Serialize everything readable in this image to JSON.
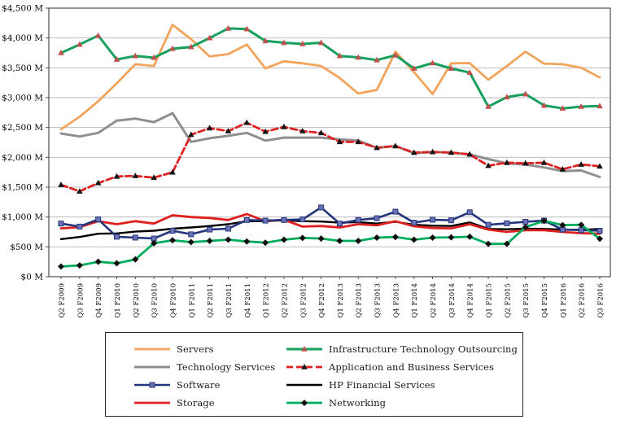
{
  "chart_data": {
    "type": "line",
    "title": "",
    "xlabel": "",
    "ylabel": "",
    "ylim": [
      0,
      4500
    ],
    "y_step": 500,
    "grid": true,
    "legend_position": "bottom",
    "y_tick_labels": [
      "$0 M",
      "$500 M",
      "$1,000 M",
      "$1,500 M",
      "$2,000 M",
      "$2,500 M",
      "$3,000 M",
      "$3,500 M",
      "$4,000 M",
      "$4,500 M"
    ],
    "categories": [
      "Q2 F2009",
      "Q3 F2009",
      "Q4 F2009",
      "Q1 F2010",
      "Q2 F2010",
      "Q3 F2010",
      "Q4 F2010",
      "Q1 F2011",
      "Q2 F2011",
      "Q3 F2011",
      "Q4 F2011",
      "Q1 F2012",
      "Q2 F2012",
      "Q3 F2012",
      "Q4 F2012",
      "Q1 F2013",
      "Q2 F2013",
      "Q3 F2013",
      "Q4 F2013",
      "Q1 F2014",
      "Q2 F2014",
      "Q3 F2014",
      "Q4 F2014",
      "Q1 F2015",
      "Q2 F2015",
      "Q3 F2015",
      "Q4 F2015",
      "Q1 F2016",
      "Q2 F2016",
      "Q3 F2016"
    ],
    "series": [
      {
        "name": "Technology Services",
        "color": "#8f8f8f",
        "dash": "none",
        "marker": "none",
        "marker_color": "#8f8f8f",
        "width": 3,
        "values": [
          2400,
          2350,
          2410,
          2615,
          2650,
          2590,
          2740,
          2260,
          2320,
          2360,
          2410,
          2280,
          2330,
          2330,
          2330,
          2300,
          2280,
          2160,
          2190,
          2070,
          2090,
          2080,
          2050,
          1970,
          1900,
          1880,
          1830,
          1770,
          1780,
          1670
        ]
      },
      {
        "name": "Servers",
        "color": "#f2a45c",
        "dash": "none",
        "marker": "none",
        "marker_color": "#f2a45c",
        "width": 2.8,
        "values": [
          2470,
          2680,
          2940,
          3240,
          3560,
          3530,
          4220,
          3980,
          3690,
          3730,
          3890,
          3490,
          3610,
          3575,
          3530,
          3330,
          3070,
          3130,
          3770,
          3430,
          3060,
          3575,
          3580,
          3300,
          3530,
          3770,
          3570,
          3560,
          3500,
          3340
        ]
      },
      {
        "name": "Infrastructure Technology Outsourcing",
        "color": "#17a05d",
        "dash": "none",
        "marker": "triangle",
        "marker_color": "#c0504d",
        "width": 3,
        "values": [
          3750,
          3890,
          4040,
          3640,
          3700,
          3670,
          3820,
          3850,
          4000,
          4160,
          4150,
          3950,
          3920,
          3900,
          3920,
          3700,
          3675,
          3630,
          3710,
          3490,
          3580,
          3490,
          3420,
          2850,
          3010,
          3060,
          2870,
          2820,
          2850,
          2860
        ]
      },
      {
        "name": "HP Financial Services",
        "color": "#000000",
        "dash": "none",
        "marker": "none",
        "marker_color": "#000000",
        "width": 2.4,
        "values": [
          630,
          665,
          720,
          725,
          755,
          770,
          805,
          825,
          850,
          880,
          930,
          930,
          945,
          930,
          925,
          905,
          915,
          890,
          920,
          870,
          855,
          850,
          910,
          800,
          795,
          805,
          800,
          790,
          785,
          800
        ]
      },
      {
        "name": "Storage",
        "color": "#e01f1f",
        "dash": "none",
        "marker": "none",
        "marker_color": "#e01f1f",
        "width": 2.8,
        "values": [
          810,
          830,
          930,
          880,
          930,
          890,
          1030,
          1000,
          985,
          950,
          1050,
          930,
          955,
          840,
          850,
          825,
          880,
          860,
          930,
          845,
          815,
          810,
          880,
          790,
          750,
          780,
          780,
          750,
          730,
          720
        ]
      },
      {
        "name": "Application and Business Services",
        "color": "#dd2222",
        "dash": "8 4",
        "marker": "triangle",
        "marker_color": "#151515",
        "width": 2.8,
        "values": [
          1540,
          1430,
          1570,
          1680,
          1690,
          1660,
          1750,
          2380,
          2490,
          2440,
          2580,
          2430,
          2510,
          2440,
          2410,
          2260,
          2260,
          2160,
          2190,
          2080,
          2090,
          2080,
          2050,
          1860,
          1910,
          1900,
          1910,
          1800,
          1880,
          1850
        ]
      },
      {
        "name": "Software",
        "color": "#24357c",
        "dash": "none",
        "marker": "square",
        "marker_color": "#6b71b5",
        "width": 2.6,
        "values": [
          890,
          840,
          960,
          670,
          655,
          640,
          770,
          710,
          790,
          805,
          950,
          940,
          950,
          960,
          1160,
          890,
          950,
          980,
          1090,
          905,
          955,
          945,
          1080,
          870,
          895,
          920,
          940,
          790,
          780,
          770
        ]
      },
      {
        "name": "Networking",
        "color": "#00ad5c",
        "dash": "none",
        "marker": "diamond",
        "marker_color": "#101010",
        "width": 2.8,
        "values": [
          170,
          190,
          250,
          225,
          290,
          560,
          610,
          580,
          600,
          620,
          590,
          570,
          620,
          650,
          640,
          600,
          600,
          655,
          665,
          620,
          655,
          660,
          670,
          550,
          550,
          830,
          935,
          865,
          870,
          635
        ]
      }
    ],
    "legend_columns": [
      [
        "Servers",
        "Technology Services",
        "Software",
        "Storage"
      ],
      [
        "Infrastructure Technology Outsourcing",
        "Application and Business Services",
        "HP Financial Services",
        "Networking"
      ]
    ]
  }
}
